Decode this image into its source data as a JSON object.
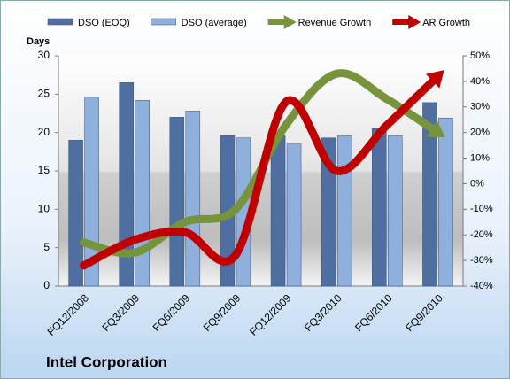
{
  "chart_data": {
    "type": "bar",
    "title": "Intel Corporation",
    "y_label": "Days",
    "categories": [
      "FQ12/2008",
      "FQ3/2009",
      "FQ6/2009",
      "FQ9/2009",
      "FQ12/2009",
      "FQ3/2010",
      "FQ6/2010",
      "FQ9/2010"
    ],
    "series": [
      {
        "name": "DSO (EOQ)",
        "type": "bar",
        "color": "#4f6fa0",
        "values": [
          19,
          26.5,
          22,
          19.6,
          19.6,
          19.3,
          20.5,
          23.9
        ]
      },
      {
        "name": "DSO (average)",
        "type": "bar",
        "color": "#8fb0dc",
        "values": [
          24.6,
          24.2,
          22.8,
          19.3,
          18.5,
          19.6,
          19.6,
          21.9
        ]
      },
      {
        "name": "Revenue Growth",
        "type": "line",
        "axis": "y2",
        "color": "#77933c",
        "values": [
          -23,
          -27,
          -15,
          -10,
          23,
          43,
          33,
          20
        ]
      },
      {
        "name": "AR Growth",
        "type": "line",
        "axis": "y2",
        "color": "#c00000",
        "values": [
          -32,
          -22,
          -19,
          -28,
          32,
          5,
          23,
          42
        ]
      }
    ],
    "ylim": [
      0,
      30
    ],
    "yticks": [
      0,
      5,
      10,
      15,
      20,
      25,
      30
    ],
    "y2lim": [
      -40,
      50
    ],
    "y2ticks": [
      {
        "value": -40,
        "label": "-40%"
      },
      {
        "value": -30,
        "label": "-30%"
      },
      {
        "value": -20,
        "label": "-20%"
      },
      {
        "value": -10,
        "label": "-10%"
      },
      {
        "value": 0,
        "label": "0%"
      },
      {
        "value": 10,
        "label": "10%"
      },
      {
        "value": 20,
        "label": "20%"
      },
      {
        "value": 30,
        "label": "30%"
      },
      {
        "value": 40,
        "label": "40%"
      },
      {
        "value": 50,
        "label": "50%"
      }
    ],
    "legend": "top"
  }
}
